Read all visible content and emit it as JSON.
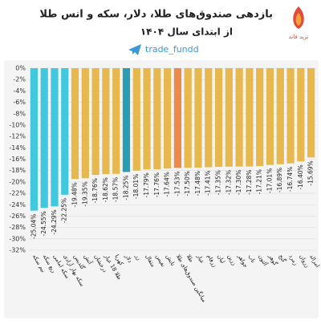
{
  "chart_data": {
    "type": "bar",
    "title": "بازدهی صندوق‌های طلا، دلار، سکه و انس طلا",
    "subtitle": "از ابتدای سال ۱۴۰۴",
    "handle": "trade_fundd",
    "logo_text": "ترید فاند",
    "categories": [
      "نیم سکه",
      "ربع سکه",
      "سکه امامی",
      "سکه بهار آزادی",
      "گلدیس",
      "آتش",
      "درخشان",
      "طلا 18 عیار",
      "کهربا",
      "دلار",
      "زر",
      "مثقال",
      "نفیس",
      "تابش",
      "میانگین صندوق‌های طلا",
      "طلا",
      "عیار",
      "زرفام",
      "لیان",
      "زرین",
      "جواهر",
      "ناب",
      "آلتون",
      "گوهر",
      "گنج",
      "زمرد",
      "زروان",
      "امرالد"
    ],
    "values": [
      -25.04,
      -24.55,
      -24.29,
      -22.25,
      -19.48,
      -19.35,
      -18.76,
      -18.62,
      -18.57,
      -18.25,
      -18.01,
      -17.79,
      -17.76,
      -17.64,
      -17.53,
      -17.5,
      -17.48,
      -17.41,
      -17.35,
      -17.32,
      -17.3,
      -17.28,
      -17.21,
      -17.01,
      -16.89,
      -16.74,
      -16.4,
      -15.69
    ],
    "value_labels": [
      "-25.04%",
      "-24.55%",
      "-24.29%",
      "-22.25%",
      "-19.48%",
      "-19.35%",
      "-18.76%",
      "-18.62%",
      "-18.57%",
      "-18.25%",
      "-18.01%",
      "-17.79%",
      "-17.76%",
      "-17.64%",
      "-17.53%",
      "-17.50%",
      "-17.48%",
      "-17.41%",
      "-17.35%",
      "-17.32%",
      "-17.30%",
      "-17.28%",
      "-17.21%",
      "-17.01%",
      "-16.89%",
      "-16.74%",
      "-16.40%",
      "-15.69%"
    ],
    "colors": [
      "#41c8de",
      "#41c8de",
      "#41c8de",
      "#41c8de",
      "#e7b84e",
      "#e7b84e",
      "#e7b84e",
      "#e7b84e",
      "#e7b84e",
      "#2b9db2",
      "#e7b84e",
      "#e7b84e",
      "#e7b84e",
      "#e7b84e",
      "#ec8a4c",
      "#e7b84e",
      "#e7b84e",
      "#e7b84e",
      "#e7b84e",
      "#e7b84e",
      "#e7b84e",
      "#e7b84e",
      "#e7b84e",
      "#e7b84e",
      "#e7b84e",
      "#e7b84e",
      "#e7b84e",
      "#e7b84e"
    ],
    "ylim": [
      -32,
      0
    ],
    "yticks": [
      {
        "value": 0,
        "label": "0%"
      },
      {
        "value": -2,
        "label": "-2%"
      },
      {
        "value": -4,
        "label": "-4%"
      },
      {
        "value": -6,
        "label": "-6%"
      },
      {
        "value": -8,
        "label": "-8%"
      },
      {
        "value": -10,
        "label": "-10%"
      },
      {
        "value": -12,
        "label": "-12%"
      },
      {
        "value": -14,
        "label": "-14%"
      },
      {
        "value": -16,
        "label": "-16%"
      },
      {
        "value": -18,
        "label": "-18%"
      },
      {
        "value": -20,
        "label": "-20%"
      },
      {
        "value": -22,
        "label": "-22%"
      },
      {
        "value": -24,
        "label": "-24%"
      },
      {
        "value": -26,
        "label": "-26%"
      },
      {
        "value": -28,
        "label": "-28%"
      },
      {
        "value": -30,
        "label": "-30%"
      },
      {
        "value": -32,
        "label": "-32%"
      }
    ],
    "grid": true
  }
}
